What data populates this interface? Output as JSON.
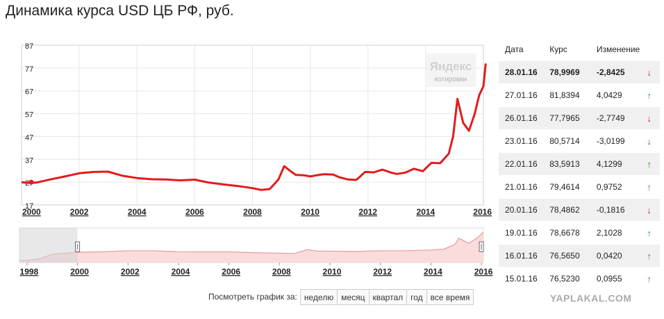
{
  "title": "Динамика курса USD ЦБ РФ, руб.",
  "logo": {
    "name": "Яндекс",
    "sub": "котировки"
  },
  "chart_data": {
    "type": "line",
    "title": "Динамика курса USD ЦБ РФ, руб.",
    "xlabel": "",
    "ylabel": "",
    "x_range": [
      2000,
      2016
    ],
    "ylim": [
      17,
      87
    ],
    "y_ticks": [
      "87",
      "77",
      "67",
      "57",
      "47",
      "37",
      "27",
      "17"
    ],
    "x_ticks": [
      "2000",
      "2002",
      "2004",
      "2006",
      "2008",
      "2010",
      "2012",
      "2014",
      "2016"
    ],
    "grid": true,
    "line_color": "#e21b1b",
    "series": [
      {
        "name": "",
        "x": [
          2000.0,
          2000.2,
          2000.5,
          2001.0,
          2001.5,
          2002.0,
          2002.5,
          2003.0,
          2003.5,
          2004.0,
          2004.5,
          2005.0,
          2005.5,
          2006.0,
          2006.5,
          2007.0,
          2007.5,
          2008.0,
          2008.3,
          2008.6,
          2008.9,
          2009.1,
          2009.3,
          2009.5,
          2009.8,
          2010.0,
          2010.3,
          2010.5,
          2010.8,
          2011.0,
          2011.3,
          2011.6,
          2011.9,
          2012.2,
          2012.5,
          2012.8,
          2013.0,
          2013.3,
          2013.6,
          2013.9,
          2014.2,
          2014.5,
          2014.8,
          2014.95,
          2015.1,
          2015.3,
          2015.5,
          2015.7,
          2015.85,
          2016.0,
          2016.08
        ],
        "values": [
          27,
          26.7,
          26.8,
          28.2,
          29.5,
          30.9,
          31.5,
          31.6,
          29.8,
          28.8,
          28.3,
          28.2,
          27.8,
          28.1,
          26.8,
          26.0,
          25.3,
          24.4,
          23.6,
          24.0,
          28.2,
          34.0,
          32.0,
          30.2,
          30.0,
          29.5,
          30.2,
          30.5,
          30.3,
          29.2,
          28.2,
          28.0,
          31.5,
          31.3,
          32.5,
          31.2,
          30.6,
          31.2,
          32.9,
          31.8,
          35.5,
          35.3,
          39.5,
          47.0,
          63.5,
          53.0,
          49.5,
          57.0,
          65.0,
          69.0,
          79.0
        ]
      }
    ],
    "navigator": {
      "x_range": [
        1997.7,
        2016.08
      ],
      "ylim": [
        0,
        90
      ],
      "x_ticks": [
        "1998",
        "2000",
        "2002",
        "2004",
        "2006",
        "2008",
        "2010",
        "2012",
        "2014",
        "2016"
      ],
      "series": {
        "x": [
          1997.7,
          1998.0,
          1998.5,
          1999.0,
          2000.0,
          2001.0,
          2002.0,
          2003.0,
          2004.0,
          2005.0,
          2006.0,
          2007.0,
          2008.0,
          2008.6,
          2009.1,
          2009.5,
          2010.0,
          2011.0,
          2012.0,
          2013.0,
          2014.0,
          2014.5,
          2014.95,
          2015.1,
          2015.5,
          2015.85,
          2016.08
        ],
        "values": [
          6,
          6,
          10,
          22,
          27,
          28.5,
          31,
          31,
          28.5,
          28,
          28,
          26,
          24.5,
          24,
          34,
          30,
          30,
          29,
          31,
          31,
          33,
          35,
          47,
          63.5,
          50,
          65,
          79
        ]
      }
    }
  },
  "period_selector": {
    "label": "Посмотреть график за:",
    "options": [
      "неделю",
      "месяц",
      "квартал",
      "год",
      "все время"
    ]
  },
  "table": {
    "headers": {
      "date": "Дата",
      "rate": "Курс",
      "change": "Изменение"
    },
    "rows": [
      {
        "date": "28.01.16",
        "rate": "78,9969",
        "change": "-2,8425",
        "dir": "down"
      },
      {
        "date": "27.01.16",
        "rate": "81,8394",
        "change": "4,0429",
        "dir": "up"
      },
      {
        "date": "26.01.16",
        "rate": "77,7965",
        "change": "-2,7749",
        "dir": "down"
      },
      {
        "date": "23.01.16",
        "rate": "80,5714",
        "change": "-3,0199",
        "dir": "down"
      },
      {
        "date": "22.01.16",
        "rate": "83,5913",
        "change": "4,1299",
        "dir": "up"
      },
      {
        "date": "21.01.16",
        "rate": "79,4614",
        "change": "0,9752",
        "dir": "up"
      },
      {
        "date": "20.01.16",
        "rate": "78,4862",
        "change": "-0,1816",
        "dir": "down"
      },
      {
        "date": "19.01.16",
        "rate": "78,6678",
        "change": "2,1028",
        "dir": "up"
      },
      {
        "date": "16.01.16",
        "rate": "76,5650",
        "change": "0,0420",
        "dir": "up"
      },
      {
        "date": "15.01.16",
        "rate": "76,5230",
        "change": "0,0955",
        "dir": "up"
      }
    ],
    "arrows": {
      "up": "↑",
      "down": "↓"
    }
  },
  "watermark": "YAPLAKAL.COM"
}
